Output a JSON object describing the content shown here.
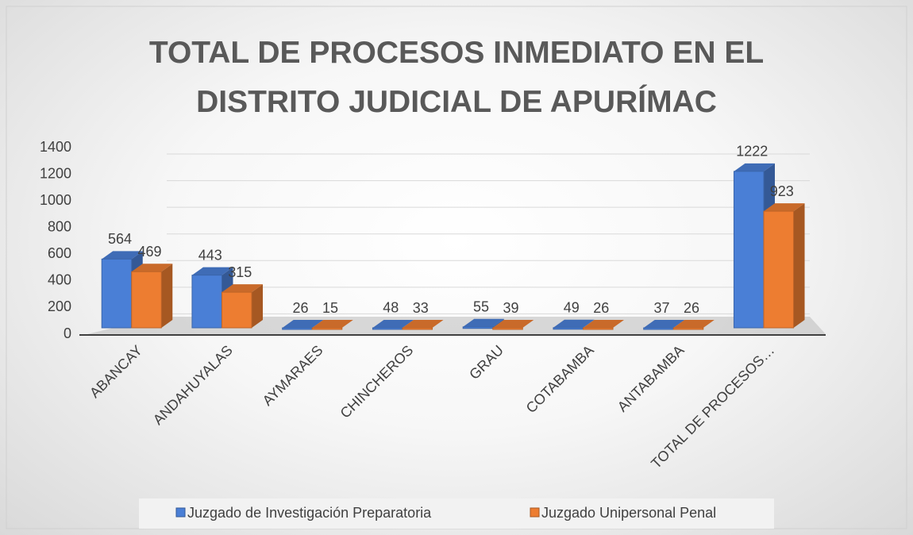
{
  "chart_data": {
    "type": "bar3d",
    "title": "TOTAL DE PROCESOS INMEDIATO EN EL DISTRITO JUDICIAL DE APURÍMAC",
    "categories": [
      "ABANCAY",
      "ANDAHUYALAS",
      "AYMARAES",
      "CHINCHEROS",
      "GRAU",
      "COTABAMBA",
      "ANTABAMBA",
      "TOTAL DE PROCESOS…"
    ],
    "series": [
      {
        "name": "Juzgado de Investigación Preparatoria",
        "color": "#4a7fd6",
        "values": [
          564,
          443,
          26,
          48,
          55,
          49,
          37,
          1222
        ]
      },
      {
        "name": "Juzgado Unipersonal Penal",
        "color": "#ed7d31",
        "values": [
          469,
          315,
          15,
          33,
          39,
          26,
          26,
          923
        ]
      }
    ],
    "ylim": [
      0,
      1400
    ],
    "yticks": [
      0,
      200,
      400,
      600,
      800,
      1000,
      1200,
      1400
    ],
    "grid": true,
    "legend": "bottom"
  }
}
